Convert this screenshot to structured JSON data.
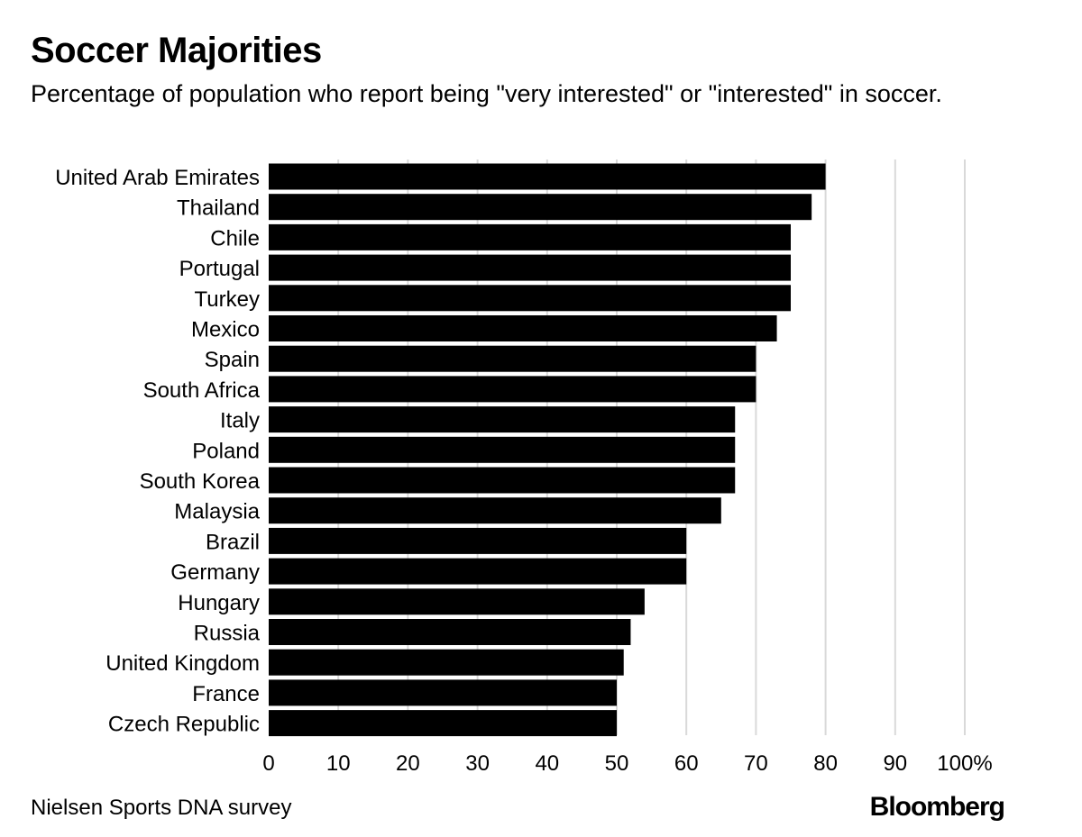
{
  "header": {
    "title": "Soccer Majorities",
    "subtitle": "Percentage of population who report being \"very interested\" or \"interested\" in soccer."
  },
  "footer": {
    "source": "Nielsen Sports DNA survey",
    "brand": "Bloomberg"
  },
  "chart_data": {
    "type": "bar",
    "orientation": "horizontal",
    "categories": [
      "United Arab Emirates",
      "Thailand",
      "Chile",
      "Portugal",
      "Turkey",
      "Mexico",
      "Spain",
      "South Africa",
      "Italy",
      "Poland",
      "South Korea",
      "Malaysia",
      "Brazil",
      "Germany",
      "Hungary",
      "Russia",
      "United Kingdom",
      "France",
      "Czech Republic"
    ],
    "values": [
      80,
      78,
      75,
      75,
      75,
      73,
      70,
      70,
      67,
      67,
      67,
      65,
      60,
      60,
      54,
      52,
      51,
      50,
      50
    ],
    "xlim": [
      0,
      100
    ],
    "x_ticks": [
      0,
      10,
      20,
      30,
      40,
      50,
      60,
      70,
      80,
      90,
      100
    ],
    "x_tick_labels": [
      "0",
      "10",
      "20",
      "30",
      "40",
      "50",
      "60",
      "70",
      "80",
      "90",
      "100%"
    ],
    "grid": true,
    "bar_color": "#000000",
    "grid_color": "#d9d9d9"
  }
}
